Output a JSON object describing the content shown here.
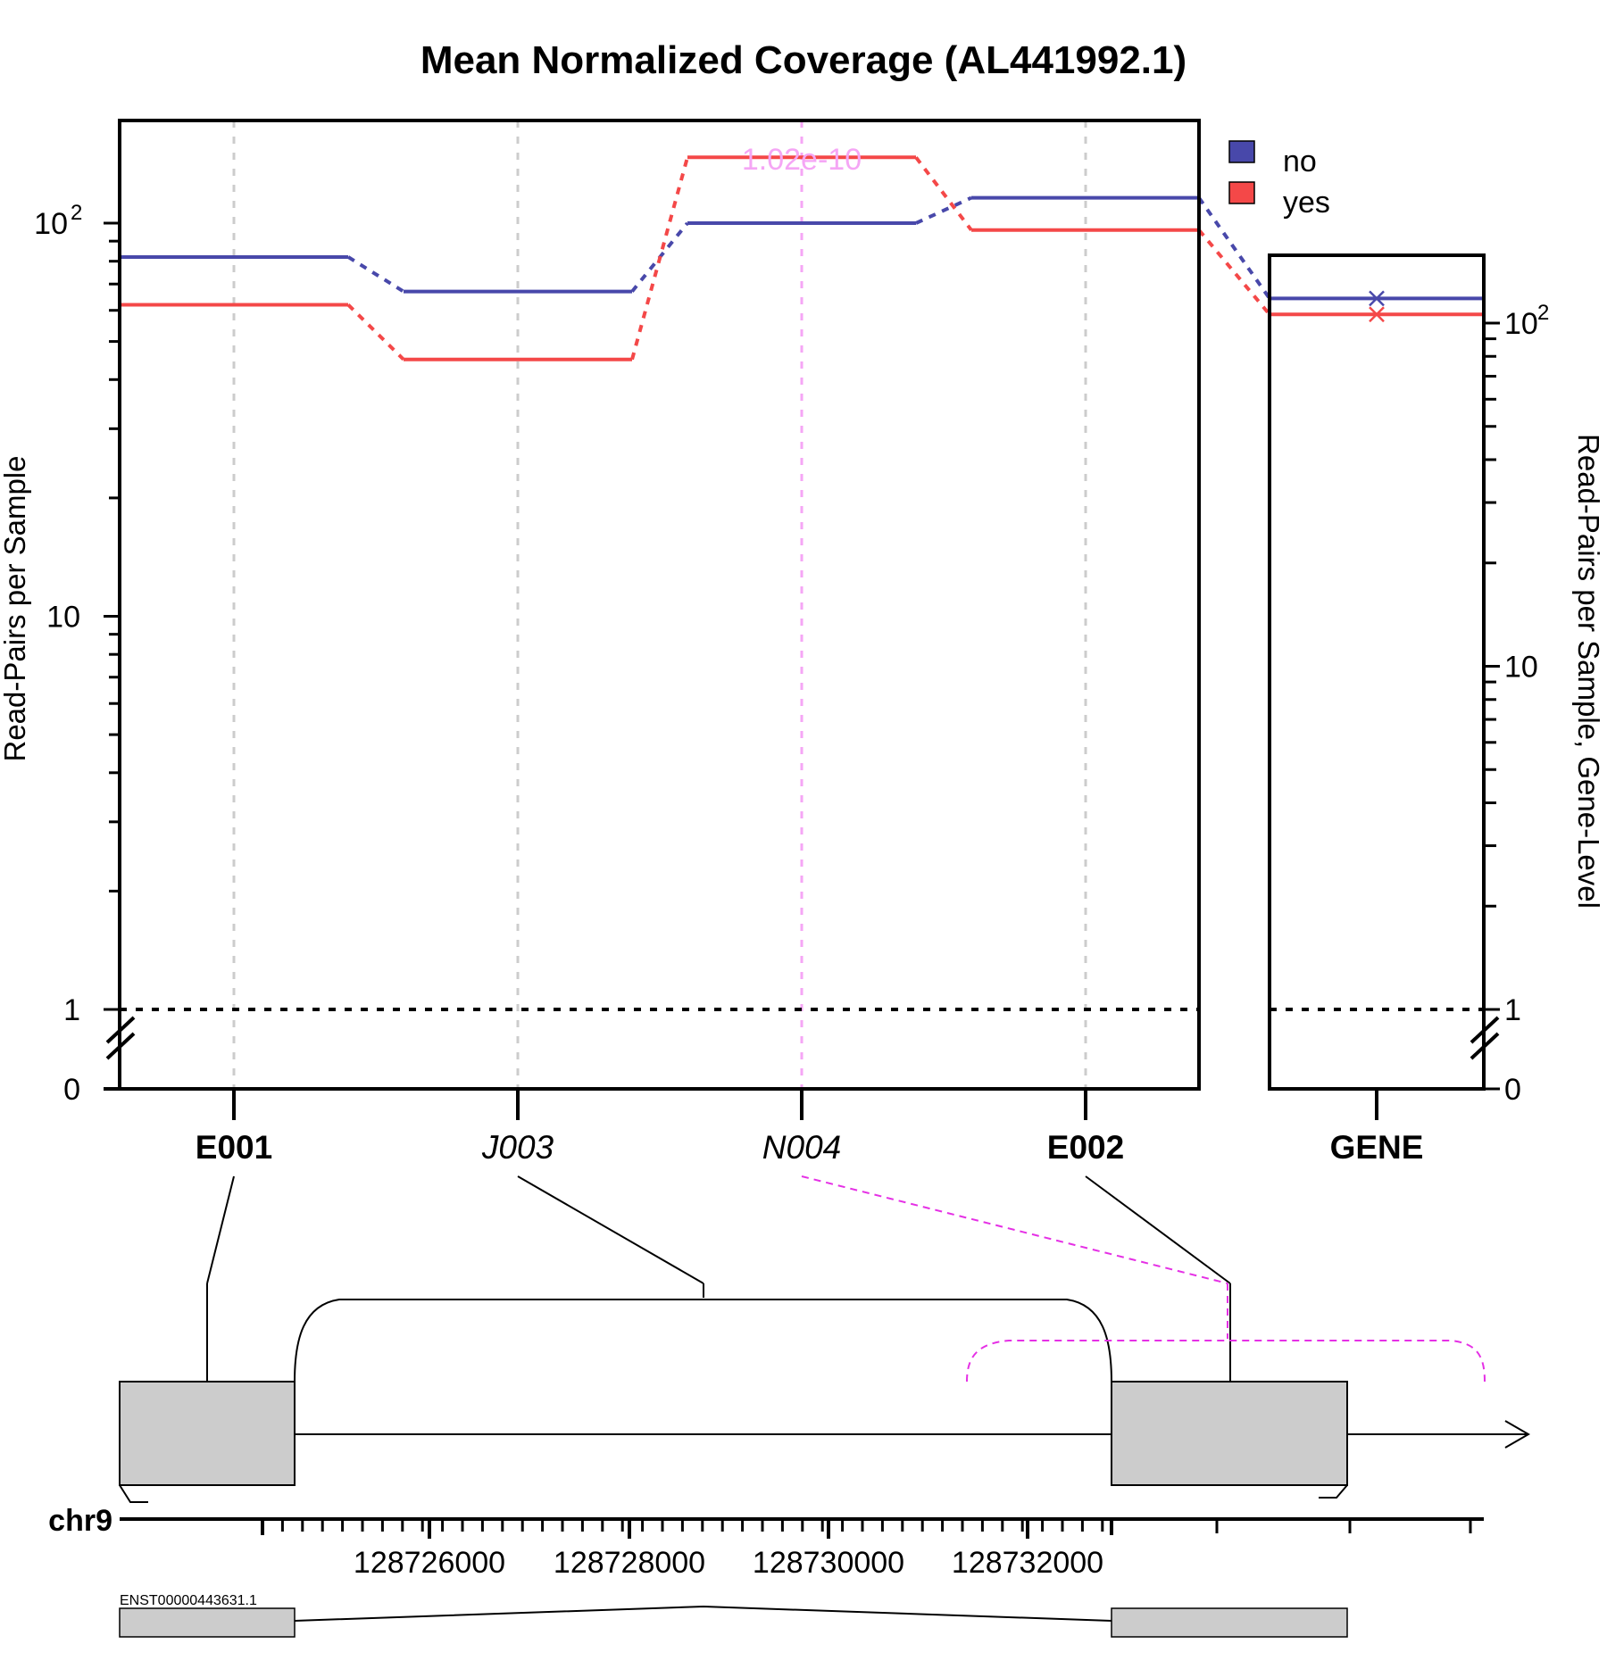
{
  "chart_data": {
    "type": "line",
    "title": "Mean Normalized Coverage (AL441992.1)",
    "ylabel": "Read-Pairs per Sample",
    "ylabel_right": "Read-Pairs per Sample, Gene-Level",
    "y_scale": "log",
    "y_ticks_left": [
      {
        "value": 0,
        "label": "0"
      },
      {
        "value": 1,
        "label": "1"
      },
      {
        "value": 10,
        "label": "10"
      },
      {
        "value": 100,
        "label": "10",
        "sup": "2"
      }
    ],
    "y_ticks_right": [
      {
        "value": 0,
        "label": "0"
      },
      {
        "value": 1,
        "label": "1"
      },
      {
        "value": 10,
        "label": "10"
      },
      {
        "value": 100,
        "label": "10",
        "sup": "2"
      }
    ],
    "features": [
      {
        "id": "E001",
        "style": "bold"
      },
      {
        "id": "J003",
        "style": "italic"
      },
      {
        "id": "N004",
        "style": "italic",
        "highlight": true
      },
      {
        "id": "E002",
        "style": "bold"
      }
    ],
    "gene_label": "GENE",
    "series": [
      {
        "name": "no",
        "color": "#4848aa",
        "values": [
          82,
          67,
          100,
          116
        ],
        "gene_value": 118
      },
      {
        "name": "yes",
        "color": "#f44848",
        "values": [
          62,
          45,
          147,
          96
        ],
        "gene_value": 106
      }
    ],
    "annotation": "1.02e-10",
    "legend_position": "top-right",
    "baseline": 1,
    "grid": "vertical dashed at features",
    "genome": {
      "chromosome": "chr9",
      "tick_labels": [
        "128726000",
        "128728000",
        "128730000",
        "128732000"
      ],
      "transcript": "ENST00000443631.1"
    }
  }
}
